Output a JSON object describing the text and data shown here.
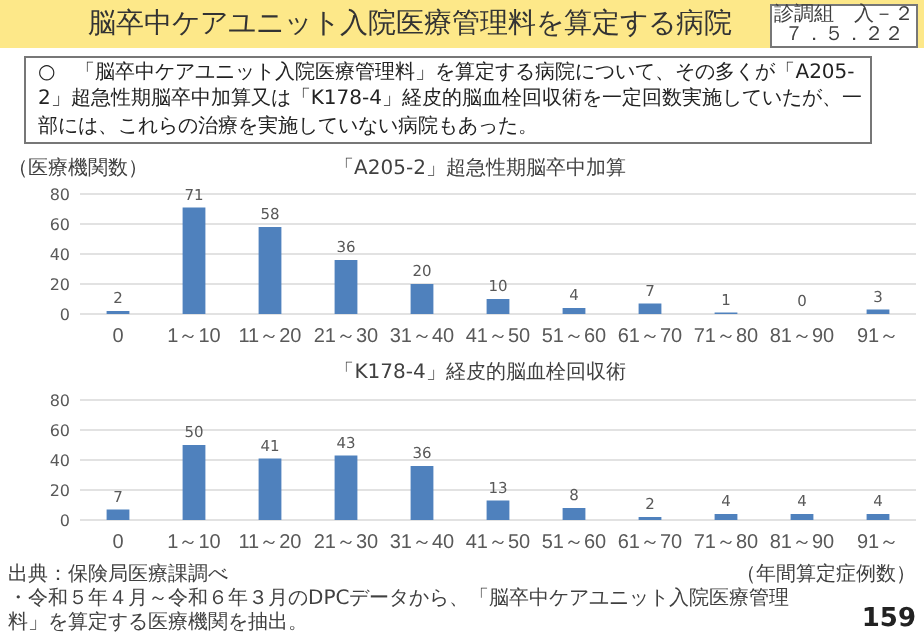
{
  "chart_data": [
    {
      "type": "other",
      "title": "脳卒中ケアユニット入院医療管理料を算定する病院",
      "annotations": [
        "診調組　入－２",
        "７．５．２２",
        "○　「脳卒中ケアユニット入院医療管理料」を算定する病院について、その多くが「A205-2」超急性期脳卒中加算又は「K178-4」経皮的脳血栓回収術を一定回数実施していたが、一部には、これらの治療を実施していない病院もあった。"
      ]
    },
    {
      "type": "bar",
      "title": "「A205-2」超急性期脳卒中加算",
      "ylabel": "（医療機関数）",
      "categories": [
        "0",
        "1～10",
        "11～20",
        "21～30",
        "31～40",
        "41～50",
        "51～60",
        "61～70",
        "71～80",
        "81～90",
        "91～"
      ],
      "values": [
        2,
        71,
        58,
        36,
        20,
        10,
        4,
        7,
        1,
        0,
        3
      ],
      "color": "#4f81bd",
      "ylim": [
        0,
        80
      ],
      "yticks": [
        0,
        20,
        40,
        60,
        80
      ],
      "grid": "y",
      "data_labels": true
    },
    {
      "type": "bar",
      "title": "「K178-4」経皮的脳血栓回収術",
      "xlabel": "（年間算定症例数）",
      "categories": [
        "0",
        "1～10",
        "11～20",
        "21～30",
        "31～40",
        "41～50",
        "51～60",
        "61～70",
        "71～80",
        "81～90",
        "91～"
      ],
      "values": [
        7,
        50,
        41,
        43,
        36,
        13,
        8,
        2,
        4,
        4,
        4
      ],
      "color": "#4f81bd",
      "ylim": [
        0,
        80
      ],
      "yticks": [
        0,
        20,
        40,
        60,
        80
      ],
      "grid": "y",
      "data_labels": true,
      "annotations": [
        "出典：保険局医療課調べ",
        "・令和５年４月～令和６年３月のDPCデータから、「脳卒中ケアユニット入院医療管理料」を算定する医療機関を抽出。",
        "159"
      ]
    }
  ]
}
